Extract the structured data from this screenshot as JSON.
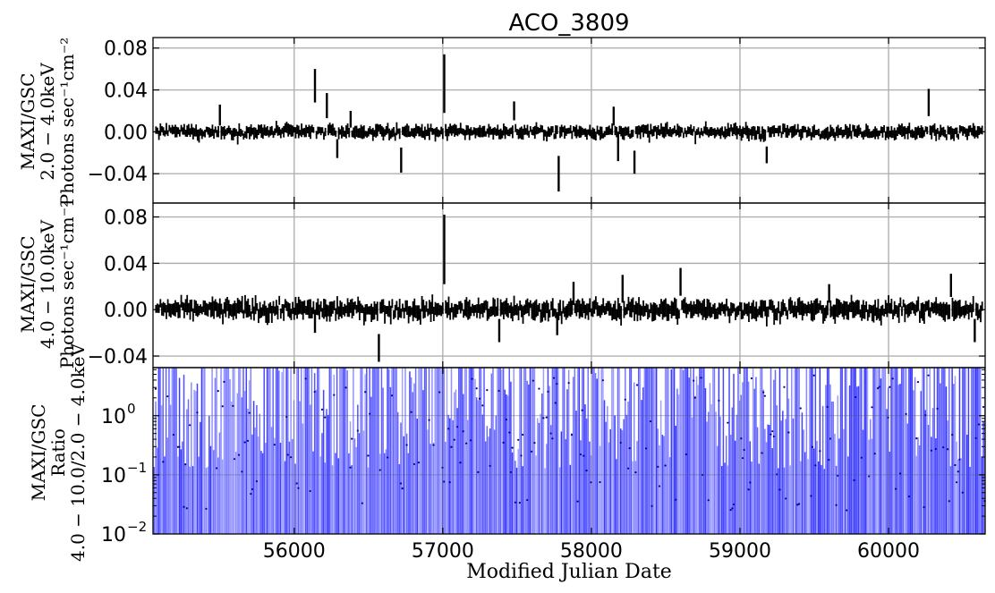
{
  "chart_data": [
    {
      "type": "scatter",
      "panel": "top",
      "title": "ACO_3809",
      "ylabel_lines": [
        "MAXI/GSC",
        "2.0 − 4.0keV",
        "Photons sec⁻¹cm⁻²"
      ],
      "xlim": [
        55050,
        60650
      ],
      "ylim": [
        -0.068,
        0.09
      ],
      "yticks": [
        -0.04,
        0.0,
        0.04,
        0.08
      ],
      "ytick_labels": [
        "−0.04",
        "0.00",
        "0.04",
        "0.08"
      ],
      "xgrid": [
        56000,
        57000,
        58000,
        59000,
        60000
      ],
      "grid": true,
      "noise_sigma": 0.0045,
      "spikes": [
        {
          "x": 55500,
          "y": 0.016,
          "err": 0.01
        },
        {
          "x": 56140,
          "y": 0.044,
          "err": 0.016
        },
        {
          "x": 56220,
          "y": 0.025,
          "err": 0.012
        },
        {
          "x": 56290,
          "y": -0.016,
          "err": 0.009
        },
        {
          "x": 56380,
          "y": 0.012,
          "err": 0.008
        },
        {
          "x": 56720,
          "y": -0.027,
          "err": 0.012
        },
        {
          "x": 57010,
          "y": 0.046,
          "err": 0.028
        },
        {
          "x": 57480,
          "y": 0.02,
          "err": 0.009
        },
        {
          "x": 57780,
          "y": -0.04,
          "err": 0.017
        },
        {
          "x": 58150,
          "y": 0.015,
          "err": 0.009
        },
        {
          "x": 58180,
          "y": -0.014,
          "err": 0.014
        },
        {
          "x": 58290,
          "y": -0.029,
          "err": 0.011
        },
        {
          "x": 59180,
          "y": -0.022,
          "err": 0.008
        },
        {
          "x": 60270,
          "y": 0.028,
          "err": 0.013
        }
      ]
    },
    {
      "type": "scatter",
      "panel": "middle",
      "ylabel_lines": [
        "MAXI/GSC",
        "4.0 − 10.0keV",
        "Photons sec⁻¹cm⁻²"
      ],
      "xlim": [
        55050,
        60650
      ],
      "ylim": [
        -0.05,
        0.092
      ],
      "yticks": [
        -0.04,
        0.0,
        0.04,
        0.08
      ],
      "ytick_labels": [
        "−0.04",
        "0.00",
        "0.04",
        "0.08"
      ],
      "xgrid": [
        56000,
        57000,
        58000,
        59000,
        60000
      ],
      "grid": true,
      "noise_sigma": 0.006,
      "spikes": [
        {
          "x": 56140,
          "y": -0.01,
          "err": 0.01
        },
        {
          "x": 56570,
          "y": -0.033,
          "err": 0.012
        },
        {
          "x": 57010,
          "y": 0.052,
          "err": 0.03
        },
        {
          "x": 57380,
          "y": -0.018,
          "err": 0.01
        },
        {
          "x": 57770,
          "y": -0.012,
          "err": 0.01
        },
        {
          "x": 57880,
          "y": 0.014,
          "err": 0.01
        },
        {
          "x": 58210,
          "y": 0.018,
          "err": 0.012
        },
        {
          "x": 58600,
          "y": 0.024,
          "err": 0.012
        },
        {
          "x": 59600,
          "y": 0.014,
          "err": 0.008
        },
        {
          "x": 60420,
          "y": 0.021,
          "err": 0.01
        },
        {
          "x": 60580,
          "y": -0.018,
          "err": 0.01
        }
      ]
    },
    {
      "type": "scatter",
      "panel": "bottom",
      "ylabel_lines": [
        "MAXI/GSC",
        "Ratio",
        "4.0 − 10.0/2.0 − 4.0keV"
      ],
      "xlabel": "Modified Julian Date",
      "xlim": [
        55050,
        60650
      ],
      "ylim": [
        0.01,
        6.5
      ],
      "yscale": "log",
      "ytick_values": [
        0.01,
        0.1,
        1
      ],
      "ytick_mantissa": "10",
      "ytick_exponents": [
        "−2",
        "−1",
        "0"
      ],
      "xticks": [
        56000,
        57000,
        58000,
        59000,
        60000
      ],
      "xtick_labels": [
        "56000",
        "57000",
        "58000",
        "59000",
        "60000"
      ],
      "grid": true,
      "color": "#0000ff"
    }
  ]
}
